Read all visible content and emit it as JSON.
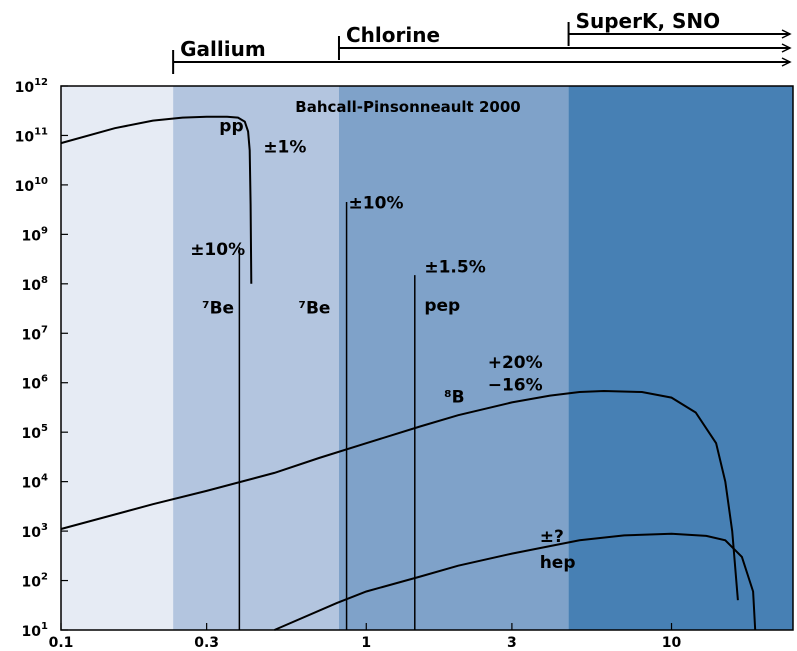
{
  "chart_data": {
    "type": "line",
    "title": "Bahcall-Pinsonneault 2000",
    "x_scale": "log",
    "y_scale": "log",
    "xlim": [
      0.1,
      25
    ],
    "ylim": [
      10,
      1000000000000
    ],
    "x_ticks": [
      {
        "value": 0.1,
        "label": "0.1"
      },
      {
        "value": 0.3,
        "label": "0.3"
      },
      {
        "value": 1,
        "label": "1"
      },
      {
        "value": 3,
        "label": "3"
      },
      {
        "value": 10,
        "label": "10"
      }
    ],
    "y_ticks": [
      {
        "value": 10,
        "base": "10",
        "exp": "1"
      },
      {
        "value": 100,
        "base": "10",
        "exp": "2"
      },
      {
        "value": 1000,
        "base": "10",
        "exp": "3"
      },
      {
        "value": 10000,
        "base": "10",
        "exp": "4"
      },
      {
        "value": 100000,
        "base": "10",
        "exp": "5"
      },
      {
        "value": 1000000,
        "base": "10",
        "exp": "6"
      },
      {
        "value": 10000000,
        "base": "10",
        "exp": "7"
      },
      {
        "value": 100000000,
        "base": "10",
        "exp": "8"
      },
      {
        "value": 1000000000,
        "base": "10",
        "exp": "9"
      },
      {
        "value": 10000000000,
        "base": "10",
        "exp": "10"
      },
      {
        "value": 100000000000,
        "base": "10",
        "exp": "11"
      },
      {
        "value": 1000000000000,
        "base": "10",
        "exp": "12"
      }
    ],
    "bands": [
      {
        "from": 0.1,
        "to": 0.233,
        "color": "#e6ebf4"
      },
      {
        "from": 0.233,
        "to": 0.814,
        "color": "#b3c5df"
      },
      {
        "from": 0.814,
        "to": 4.6,
        "color": "#7fa2c9"
      },
      {
        "from": 4.6,
        "to": 25,
        "color": "#4780b4"
      }
    ],
    "detectors": [
      {
        "name": "Gallium",
        "threshold": 0.233
      },
      {
        "name": "Chlorine",
        "threshold": 0.814
      },
      {
        "name": "SuperK, SNO",
        "threshold": 4.6
      }
    ],
    "series": [
      {
        "name": "pp",
        "points": [
          [
            0.1,
            70000000000
          ],
          [
            0.15,
            140000000000
          ],
          [
            0.2,
            200000000000
          ],
          [
            0.25,
            230000000000
          ],
          [
            0.3,
            240000000000
          ],
          [
            0.35,
            240000000000
          ],
          [
            0.38,
            230000000000
          ],
          [
            0.4,
            190000000000
          ],
          [
            0.41,
            120000000000
          ],
          [
            0.415,
            50000000000
          ],
          [
            0.418,
            4000000000
          ],
          [
            0.42,
            100000000
          ]
        ]
      },
      {
        "name": "8B",
        "points": [
          [
            0.1,
            1100
          ],
          [
            0.2,
            3500
          ],
          [
            0.3,
            6500
          ],
          [
            0.5,
            15000
          ],
          [
            0.7,
            30000
          ],
          [
            1,
            60000
          ],
          [
            1.5,
            130000
          ],
          [
            2,
            220000
          ],
          [
            3,
            400000
          ],
          [
            4,
            550000
          ],
          [
            5,
            650000
          ],
          [
            6,
            680000
          ],
          [
            8,
            650000
          ],
          [
            10,
            500000
          ],
          [
            12,
            250000
          ],
          [
            14,
            60000
          ],
          [
            15,
            10000
          ],
          [
            15.8,
            1000
          ],
          [
            16.5,
            40
          ]
        ]
      },
      {
        "name": "hep",
        "points": [
          [
            0.5,
            10
          ],
          [
            0.8,
            35
          ],
          [
            1,
            60
          ],
          [
            1.5,
            120
          ],
          [
            2,
            200
          ],
          [
            3,
            350
          ],
          [
            5,
            650
          ],
          [
            7,
            820
          ],
          [
            10,
            880
          ],
          [
            13,
            800
          ],
          [
            15,
            650
          ],
          [
            17,
            300
          ],
          [
            18.5,
            60
          ],
          [
            18.8,
            10
          ]
        ]
      }
    ],
    "lines": [
      {
        "name": "7Be",
        "energy": 0.384,
        "flux": 550000000
      },
      {
        "name": "7Be",
        "energy": 0.862,
        "flux": 4500000000
      },
      {
        "name": "pep",
        "energy": 1.442,
        "flux": 150000000
      }
    ],
    "annotations": [
      {
        "id": "pp_label",
        "text": "pp",
        "x": 0.33,
        "y": 120000000000
      },
      {
        "id": "pp_err",
        "text": "±1%",
        "x": 0.46,
        "y": 45000000000
      },
      {
        "id": "be7_low_err",
        "text": "±10%",
        "x": 0.265,
        "y": 380000000
      },
      {
        "id": "be7_low_label",
        "text": "⁷Be",
        "x": 0.29,
        "y": 25000000
      },
      {
        "id": "be7_high_label",
        "text": "⁷Be",
        "x": 0.6,
        "y": 25000000
      },
      {
        "id": "be7_high_err",
        "text": "±10%",
        "x": 0.875,
        "y": 3300000000
      },
      {
        "id": "pep_err",
        "text": "±1.5%",
        "x": 1.55,
        "y": 170000000
      },
      {
        "id": "pep_label",
        "text": "pep",
        "x": 1.55,
        "y": 28000000
      },
      {
        "id": "b8_err_plus",
        "text": "+20%",
        "x": 2.5,
        "y": 2000000
      },
      {
        "id": "b8_err_minus",
        "text": "−16%",
        "x": 2.5,
        "y": 700000
      },
      {
        "id": "b8_label",
        "text": "⁸B",
        "x": 1.8,
        "y": 400000
      },
      {
        "id": "hep_err",
        "text": "±?",
        "x": 3.7,
        "y": 600
      },
      {
        "id": "hep_label",
        "text": "hep",
        "x": 3.7,
        "y": 180
      }
    ]
  }
}
